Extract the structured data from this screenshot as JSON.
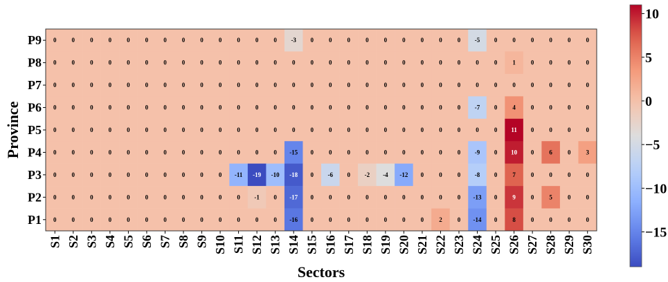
{
  "chart_data": {
    "type": "heatmap",
    "xlabel": "Sectors",
    "ylabel": "Province",
    "x": [
      "S1",
      "S2",
      "S3",
      "S4",
      "S5",
      "S6",
      "S7",
      "S8",
      "S9",
      "S10",
      "S11",
      "S12",
      "S13",
      "S14",
      "S15",
      "S16",
      "S17",
      "S18",
      "S19",
      "S20",
      "S21",
      "S22",
      "S23",
      "S24",
      "S25",
      "S26",
      "S27",
      "S28",
      "S29",
      "S30"
    ],
    "y": [
      "P9",
      "P8",
      "P7",
      "P6",
      "P5",
      "P4",
      "P3",
      "P2",
      "P1"
    ],
    "values": [
      [
        0,
        0,
        0,
        0,
        0,
        0,
        0,
        0,
        0,
        0,
        0,
        0,
        0,
        -3,
        0,
        0,
        0,
        0,
        0,
        0,
        0,
        0,
        0,
        -5,
        0,
        0,
        0,
        0,
        0,
        0
      ],
      [
        0,
        0,
        0,
        0,
        0,
        0,
        0,
        0,
        0,
        0,
        0,
        0,
        0,
        0,
        0,
        0,
        0,
        0,
        0,
        0,
        0,
        0,
        0,
        0,
        0,
        1,
        0,
        0,
        0,
        0
      ],
      [
        0,
        0,
        0,
        0,
        0,
        0,
        0,
        0,
        0,
        0,
        0,
        0,
        0,
        0,
        0,
        0,
        0,
        0,
        0,
        0,
        0,
        0,
        0,
        0,
        0,
        0,
        0,
        0,
        0,
        0
      ],
      [
        0,
        0,
        0,
        0,
        0,
        0,
        0,
        0,
        0,
        0,
        0,
        0,
        0,
        0,
        0,
        0,
        0,
        0,
        0,
        0,
        0,
        0,
        0,
        -7,
        0,
        4,
        0,
        0,
        0,
        0
      ],
      [
        0,
        0,
        0,
        0,
        0,
        0,
        0,
        0,
        0,
        0,
        0,
        0,
        0,
        0,
        0,
        0,
        0,
        0,
        0,
        0,
        0,
        0,
        0,
        0,
        0,
        11,
        0,
        0,
        0,
        0
      ],
      [
        0,
        0,
        0,
        0,
        0,
        0,
        0,
        0,
        0,
        0,
        0,
        0,
        0,
        -15,
        0,
        0,
        0,
        0,
        0,
        0,
        0,
        0,
        0,
        -9,
        0,
        10,
        0,
        6,
        0,
        3
      ],
      [
        0,
        0,
        0,
        0,
        0,
        0,
        0,
        0,
        0,
        0,
        -11,
        -19,
        -10,
        -18,
        0,
        -6,
        0,
        -2,
        -4,
        -12,
        0,
        0,
        0,
        -8,
        0,
        7,
        0,
        0,
        0,
        0
      ],
      [
        0,
        0,
        0,
        0,
        0,
        0,
        0,
        0,
        0,
        0,
        0,
        -1,
        0,
        -17,
        0,
        0,
        0,
        0,
        0,
        0,
        0,
        0,
        0,
        -13,
        0,
        9,
        0,
        5,
        0,
        0
      ],
      [
        0,
        0,
        0,
        0,
        0,
        0,
        0,
        0,
        0,
        0,
        0,
        0,
        0,
        -16,
        0,
        0,
        0,
        0,
        0,
        0,
        0,
        2,
        0,
        -14,
        0,
        8,
        0,
        0,
        0,
        0
      ]
    ],
    "colorbar": {
      "colormap": "coolwarm",
      "vmin": -19,
      "vmax": 11,
      "ticks": [
        10,
        5,
        0,
        -5,
        -10,
        -15
      ],
      "tick_labels": [
        "10",
        "5",
        "0",
        "−5",
        "−10",
        "−15"
      ]
    },
    "cell_labels": true
  }
}
